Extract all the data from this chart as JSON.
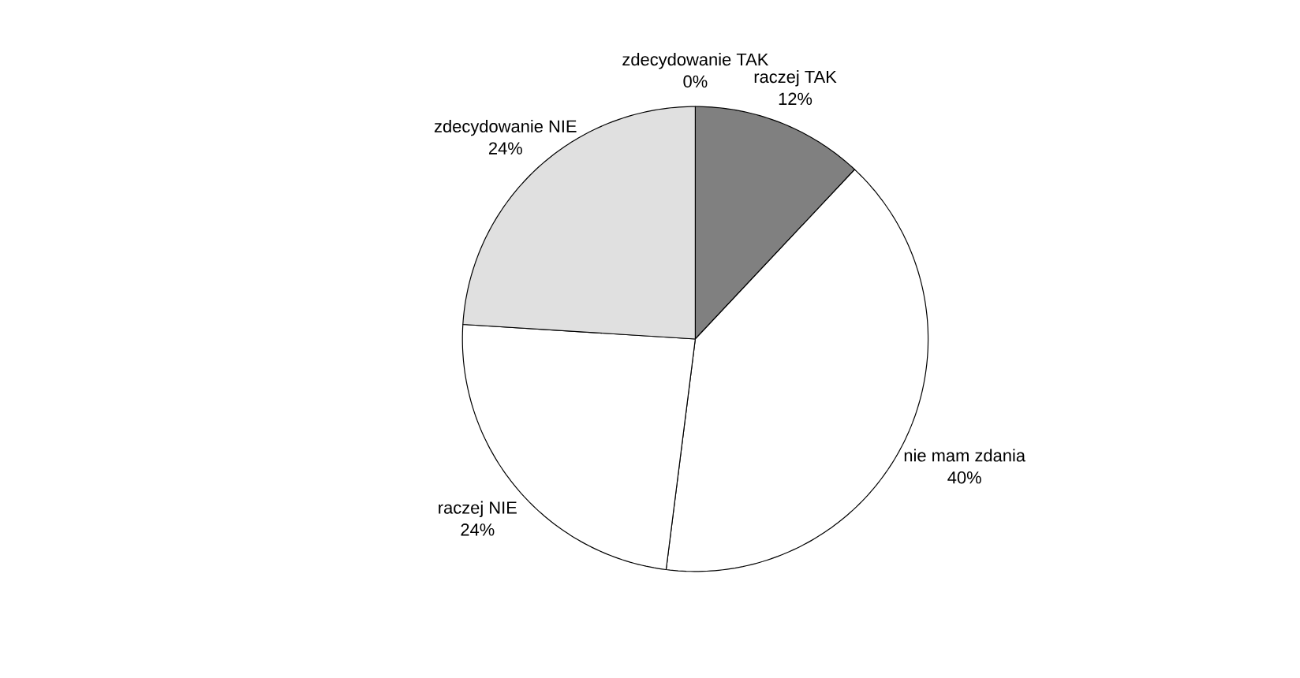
{
  "chart_data": {
    "type": "pie",
    "categories": [
      "zdecydowanie TAK",
      "raczej TAK",
      "nie mam zdania",
      "raczej NIE",
      "zdecydowanie NIE"
    ],
    "values": [
      0,
      12,
      40,
      24,
      24
    ],
    "value_labels": [
      "0%",
      "12%",
      "40%",
      "24%",
      "24%"
    ],
    "colors": [
      "#404040",
      "#808080",
      "#ffffff",
      "#ffffff",
      "#e0e0e0"
    ],
    "legend": false
  }
}
